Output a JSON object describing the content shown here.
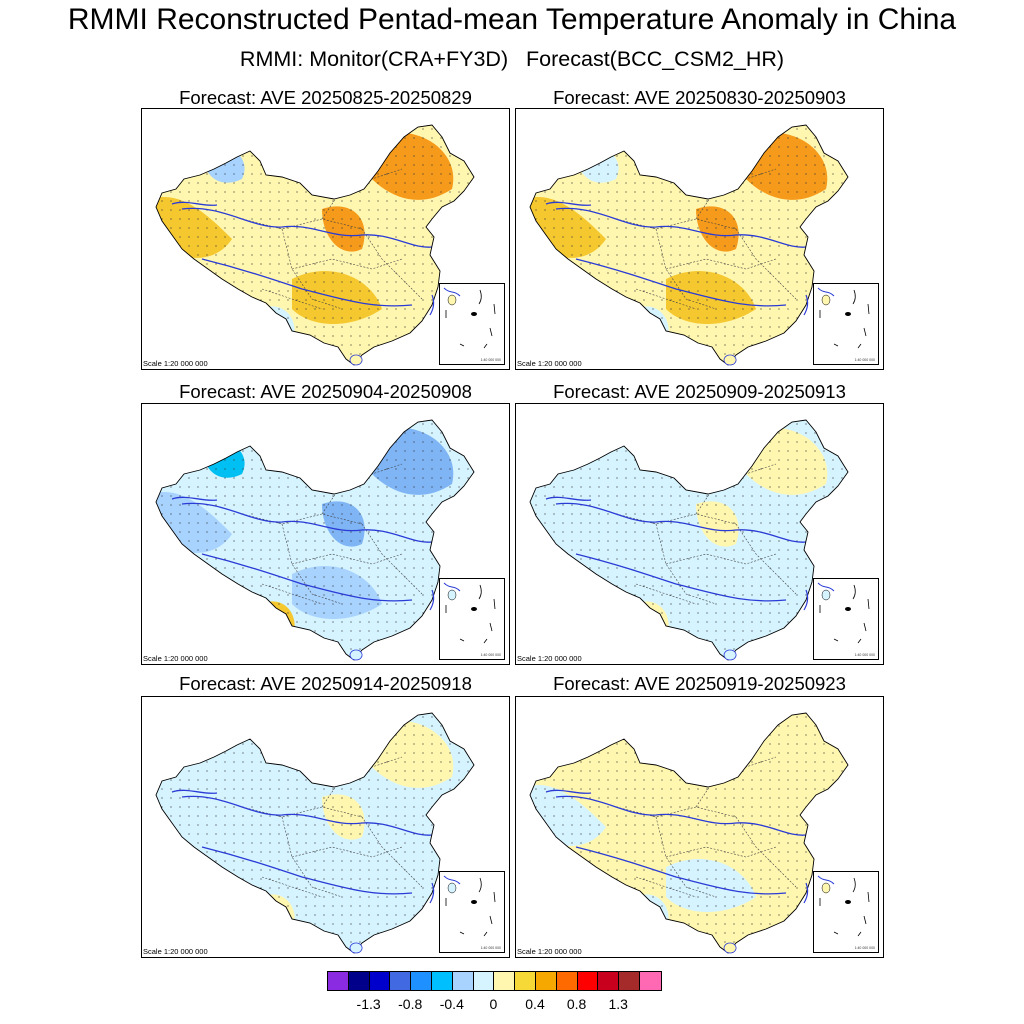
{
  "title": "RMMI Reconstructed Pentad-mean Temperature Anomaly in China",
  "subtitle": "RMMI: Monitor(CRA+FY3D)   Forecast(BCC_CSM2_HR)",
  "panels": [
    {
      "title": "Forecast: AVE 20250825-20250829",
      "scale": "Scale 1:20 000 000",
      "inset_scale": "1:40 000 000",
      "palette": {
        "base": "#fff7b0",
        "patch1": "#f6c830",
        "patch2": "#f59a1a",
        "patch3": "#d6f4ff",
        "patch4": "#a9d3ff"
      }
    },
    {
      "title": "Forecast: AVE 20250830-20250903",
      "scale": "Scale 1:20 000 000",
      "inset_scale": "1:40 000 000",
      "palette": {
        "base": "#fff7b0",
        "patch1": "#f6c830",
        "patch2": "#f59a1a",
        "patch3": "#d6f4ff",
        "patch4": "#d6f4ff"
      }
    },
    {
      "title": "Forecast: AVE 20250904-20250908",
      "scale": "Scale 1:20 000 000",
      "inset_scale": "1:40 000 000",
      "palette": {
        "base": "#d6f4ff",
        "patch1": "#a9d3ff",
        "patch2": "#7fb4f5",
        "patch3": "#f6c830",
        "patch4": "#00bff2"
      }
    },
    {
      "title": "Forecast: AVE 20250909-20250913",
      "scale": "Scale 1:20 000 000",
      "inset_scale": "1:40 000 000",
      "palette": {
        "base": "#d6f4ff",
        "patch1": "#d6f4ff",
        "patch2": "#fff7b0",
        "patch3": "#fff7b0",
        "patch4": "#d6f4ff"
      }
    },
    {
      "title": "Forecast: AVE 20250914-20250918",
      "scale": "Scale 1:20 000 000",
      "inset_scale": "1:40 000 000",
      "palette": {
        "base": "#d6f4ff",
        "patch1": "#d6f4ff",
        "patch2": "#fff7b0",
        "patch3": "#fff7b0",
        "patch4": "#d6f4ff"
      }
    },
    {
      "title": "Forecast: AVE 20250919-20250923",
      "scale": "Scale 1:20 000 000",
      "inset_scale": "1:40 000 000",
      "palette": {
        "base": "#fff7b0",
        "patch1": "#d6f4ff",
        "patch2": "#fff7b0",
        "patch3": "#d6f4ff",
        "patch4": "#fff7b0"
      }
    }
  ],
  "colorbar": {
    "colors": [
      "#8a2be2",
      "#00008b",
      "#0000cd",
      "#4169e1",
      "#1e90ff",
      "#00bfff",
      "#a9d3ff",
      "#d6f4ff",
      "#fff7b0",
      "#f6d836",
      "#f6a800",
      "#ff6a00",
      "#ff0000",
      "#c8001e",
      "#a52a2a",
      "#ff69b4"
    ],
    "labels": [
      "-1.3",
      "-0.8",
      "-0.4",
      "0",
      "0.4",
      "0.8",
      "1.3"
    ]
  }
}
